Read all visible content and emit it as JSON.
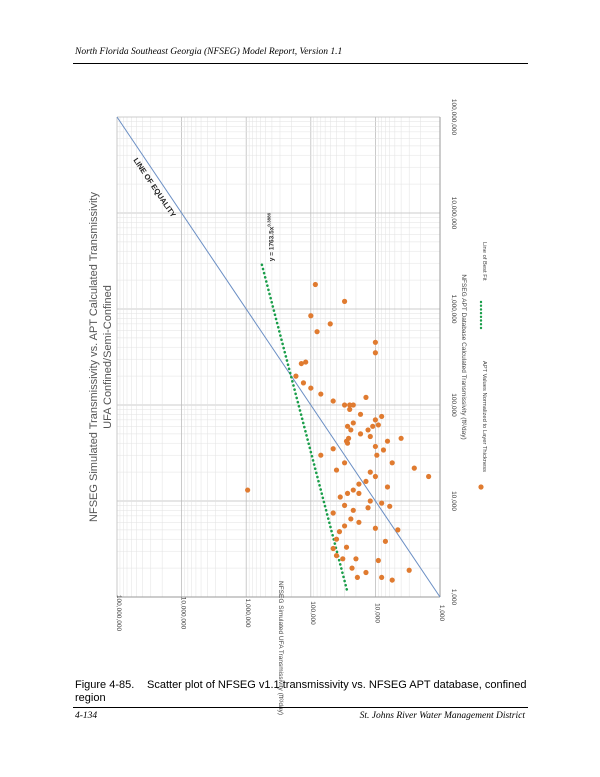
{
  "page": {
    "header": "North Florida Southeast Georgia (NFSEG) Model Report, Version 1.1",
    "figure_number": "Figure 4-85.",
    "figure_caption": "Scatter plot of NFSEG v1.1 transmissivity vs. NFSEG APT database, confined region",
    "footer_left": "4-134",
    "footer_right": "St. Johns River Water Management District"
  },
  "chart_data": {
    "type": "scatter",
    "title_line1": "NFSEG Simulated Transmissivity vs. APT Calculated Transmissivity",
    "title_line2": "UFA Confined/Semi-Confined",
    "xlabel": "NFSEG APT Database Calculated Transmissivity (ft²/day)",
    "ylabel": "NFSEG Simulated UFA Transmissivity (ft²/day)",
    "xscale": "log",
    "yscale": "log",
    "xlim": [
      1000,
      100000000
    ],
    "ylim": [
      1000,
      100000000
    ],
    "x_tick_labels": [
      "1,000",
      "10,000",
      "100,000",
      "1,000,000",
      "10,000,000",
      "100,000,000"
    ],
    "y_tick_labels": [
      "1,000",
      "10,000",
      "100,000",
      "1,000,000",
      "10,000,000",
      "100,000,000"
    ],
    "grid": true,
    "orientation": "rotated 90 degrees clockwise on page",
    "equality_label": "LINE OF EQUALITY",
    "fit_equation": "y = 1763.5x",
    "fit_exponent": "0.3886",
    "fit_coefficient": 1763.5,
    "fit_power": 0.3886,
    "fit_x_range": [
      1200,
      3000000
    ],
    "legend": {
      "placement": "bottom",
      "items": [
        "APT Values Normalized to Layer Thickness",
        "Line of Best Fit"
      ]
    },
    "colors": {
      "points": "#e07b30",
      "fit": "#1a9e4a",
      "equality": "#6b8fc4"
    },
    "series": [
      {
        "name": "APT Values Normalized to Layer Thickness",
        "points": [
          [
            1600,
            19000
          ],
          [
            1800,
            14000
          ],
          [
            1600,
            8000
          ],
          [
            1500,
            5500
          ],
          [
            2500,
            20000
          ],
          [
            2000,
            23000
          ],
          [
            2500,
            32000
          ],
          [
            2700,
            40000
          ],
          [
            3200,
            45000
          ],
          [
            4000,
            40000
          ],
          [
            4800,
            36000
          ],
          [
            5500,
            30000
          ],
          [
            6500,
            24000
          ],
          [
            8000,
            22000
          ],
          [
            8500,
            13000
          ],
          [
            9500,
            8000
          ],
          [
            10000,
            12000
          ],
          [
            9000,
            30000
          ],
          [
            7500,
            45000
          ],
          [
            11000,
            35000
          ],
          [
            12000,
            27000
          ],
          [
            13000,
            22000
          ],
          [
            15000,
            18000
          ],
          [
            16000,
            14000
          ],
          [
            18000,
            10000
          ],
          [
            20000,
            12000
          ],
          [
            21000,
            40000
          ],
          [
            25000,
            30000
          ],
          [
            30000,
            70000
          ],
          [
            35000,
            45000
          ],
          [
            40000,
            27000
          ],
          [
            45000,
            26000
          ],
          [
            50000,
            17000
          ],
          [
            55000,
            13000
          ],
          [
            60000,
            27000
          ],
          [
            65000,
            22000
          ],
          [
            70000,
            10000
          ],
          [
            80000,
            17000
          ],
          [
            90000,
            25000
          ],
          [
            100000,
            30000
          ],
          [
            110000,
            45000
          ],
          [
            120000,
            14000
          ],
          [
            130000,
            70000
          ],
          [
            150000,
            100000
          ],
          [
            170000,
            130000
          ],
          [
            200000,
            170000
          ],
          [
            270000,
            140000
          ],
          [
            280000,
            120000
          ],
          [
            350000,
            10000
          ],
          [
            450000,
            10000
          ],
          [
            580000,
            80000
          ],
          [
            700000,
            50000
          ],
          [
            850000,
            100000
          ],
          [
            1200000,
            30000
          ],
          [
            1800000,
            85000
          ],
          [
            25000,
            5500
          ],
          [
            30000,
            9500
          ],
          [
            37000,
            10000
          ],
          [
            42000,
            6500
          ],
          [
            60000,
            11000
          ],
          [
            76000,
            8000
          ],
          [
            14000,
            6500
          ],
          [
            12000,
            18000
          ],
          [
            8800,
            6000
          ],
          [
            5200,
            10000
          ],
          [
            3800,
            7000
          ],
          [
            6000,
            18000
          ],
          [
            100000,
            25000
          ],
          [
            100000,
            22000
          ],
          [
            42000,
            28000
          ],
          [
            47000,
            12000
          ],
          [
            55000,
            24000
          ],
          [
            62000,
            9000
          ],
          [
            34000,
            7500
          ],
          [
            3300,
            28000
          ],
          [
            2400,
            9000
          ],
          [
            1900,
            3000
          ],
          [
            13000,
            950000
          ],
          [
            18000,
            1500
          ],
          [
            45000,
            4000
          ],
          [
            5000,
            4500
          ],
          [
            22000,
            2500
          ]
        ]
      },
      {
        "name": "Line of Best Fit"
      }
    ]
  }
}
